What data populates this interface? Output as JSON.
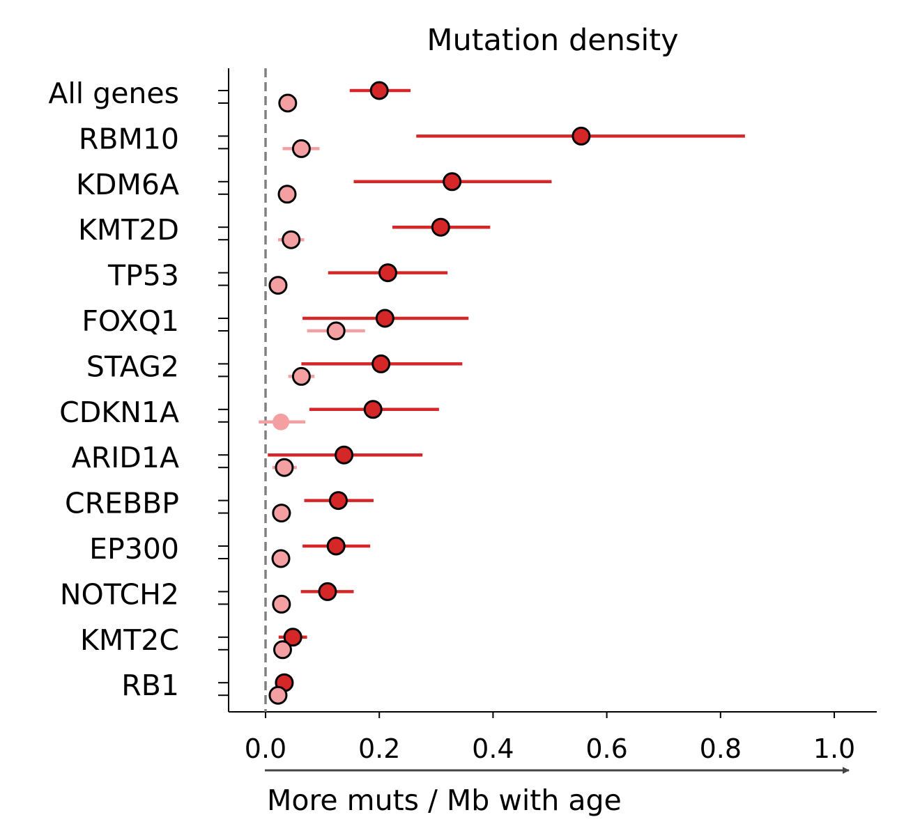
{
  "chart_data": {
    "type": "scatter",
    "title": "Mutation density",
    "xlabel": "More muts / Mb with age",
    "ylabel": "",
    "xlim": [
      -0.065,
      1.075
    ],
    "xticks": [
      0.0,
      0.2,
      0.4,
      0.6,
      0.8,
      1.0
    ],
    "xtick_labels": [
      "0.0",
      "0.2",
      "0.4",
      "0.6",
      "0.8",
      "1.0"
    ],
    "reference_line": {
      "x": 0.0,
      "style": "dashed",
      "color": "#808080"
    },
    "grid": false,
    "categories": [
      "All genes",
      "RBM10",
      "KDM6A",
      "KMT2D",
      "TP53",
      "FOXQ1",
      "STAG2",
      "CDKN1A",
      "ARID1A",
      "CREBBP",
      "EP300",
      "NOTCH2",
      "KMT2C",
      "RB1"
    ],
    "series": [
      {
        "color": "#d62728",
        "estimate": [
          0.2,
          0.555,
          0.328,
          0.308,
          0.215,
          0.21,
          0.203,
          0.189,
          0.138,
          0.128,
          0.124,
          0.109,
          0.048,
          0.033
        ],
        "ci_low": [
          0.148,
          0.265,
          0.155,
          0.223,
          0.11,
          0.065,
          0.063,
          0.077,
          0.004,
          0.068,
          0.065,
          0.062,
          0.023,
          0.018
        ],
        "ci_high": [
          0.255,
          0.843,
          0.503,
          0.395,
          0.32,
          0.357,
          0.346,
          0.305,
          0.276,
          0.19,
          0.184,
          0.155,
          0.073,
          0.048
        ],
        "marker_edge": [
          true,
          true,
          true,
          true,
          true,
          true,
          true,
          true,
          true,
          true,
          true,
          true,
          true,
          true
        ]
      },
      {
        "color": "#f4a0a3",
        "estimate": [
          0.039,
          0.063,
          0.038,
          0.045,
          0.022,
          0.124,
          0.063,
          0.027,
          0.033,
          0.028,
          0.027,
          0.028,
          0.03,
          0.022
        ],
        "ci_low": [
          0.024,
          0.03,
          0.026,
          0.022,
          0.008,
          0.073,
          0.04,
          -0.012,
          0.012,
          0.012,
          0.014,
          0.012,
          0.018,
          0.012
        ],
        "ci_high": [
          0.054,
          0.095,
          0.05,
          0.068,
          0.036,
          0.175,
          0.086,
          0.07,
          0.055,
          0.045,
          0.04,
          0.044,
          0.042,
          0.032
        ],
        "marker_edge": [
          true,
          true,
          true,
          true,
          true,
          true,
          true,
          false,
          true,
          true,
          true,
          true,
          true,
          true
        ]
      }
    ]
  }
}
